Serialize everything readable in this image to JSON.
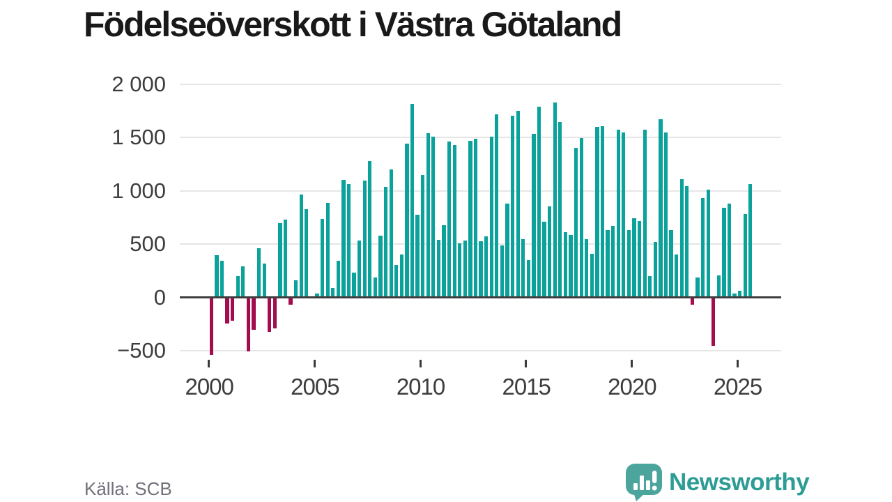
{
  "title": "Födelseöverskott i Västra Götaland",
  "source": {
    "label": "Källa: SCB"
  },
  "brand": {
    "name": "Newsworthy"
  },
  "colors": {
    "positive_bar": "#0aa29a",
    "negative_bar": "#a30d4e",
    "grid": "#e6e6e6",
    "zero_line": "#3f3f3f",
    "axis_text": "#3d3d3d",
    "title_text": "#191919",
    "source_text": "#70707a",
    "brand_teal": "#2d9c94",
    "logo_bubble": "#4ba59c"
  },
  "chart_data": {
    "type": "bar",
    "title": "Födelseöverskott i Västra Götaland",
    "frequency": "quarterly",
    "start": "2000 Q1",
    "end": "2025 Q3",
    "xlabel": "",
    "ylabel": "",
    "ylim": [
      -545,
      2070
    ],
    "grid": "horizontal",
    "y_ticks": [
      {
        "value": 2000,
        "label": "2 000"
      },
      {
        "value": 1500,
        "label": "1 500"
      },
      {
        "value": 1000,
        "label": "1 000"
      },
      {
        "value": 500,
        "label": "500"
      },
      {
        "value": 0,
        "label": "0"
      },
      {
        "value": -500,
        "label": "−500"
      }
    ],
    "x_ticks": [
      {
        "year": 2000,
        "label": "2000"
      },
      {
        "year": 2005,
        "label": "2005"
      },
      {
        "year": 2010,
        "label": "2010"
      },
      {
        "year": 2015,
        "label": "2015"
      },
      {
        "year": 2020,
        "label": "2020"
      },
      {
        "year": 2025,
        "label": "2025"
      }
    ],
    "values": [
      -540,
      395,
      345,
      -245,
      -215,
      200,
      290,
      -505,
      -300,
      465,
      315,
      -325,
      -290,
      695,
      730,
      -65,
      160,
      965,
      825,
      5,
      35,
      735,
      885,
      90,
      345,
      1105,
      1060,
      235,
      535,
      1095,
      1280,
      185,
      580,
      1040,
      1200,
      305,
      400,
      1440,
      1815,
      775,
      1145,
      1540,
      1505,
      540,
      675,
      1465,
      1430,
      510,
      535,
      1470,
      1490,
      530,
      570,
      1505,
      1715,
      490,
      880,
      1705,
      1750,
      545,
      350,
      1535,
      1790,
      710,
      855,
      1830,
      1645,
      610,
      585,
      1405,
      1495,
      550,
      410,
      1600,
      1605,
      635,
      670,
      1570,
      1545,
      635,
      740,
      715,
      1570,
      200,
      520,
      1670,
      1550,
      635,
      400,
      1110,
      1045,
      -65,
      185,
      930,
      1010,
      -455,
      205,
      840,
      880,
      35,
      60,
      785,
      1065
    ]
  }
}
